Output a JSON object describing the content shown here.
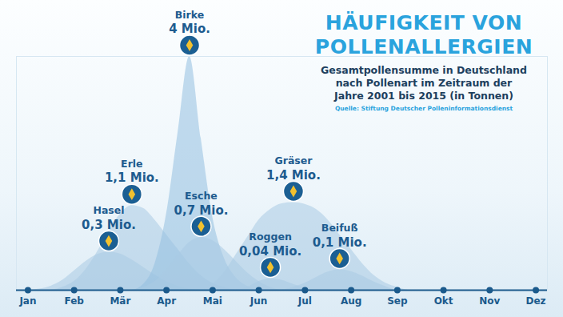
{
  "chart_data": {
    "type": "area",
    "title": "HÄUFIGKEIT VON POLLENALLERGIEN",
    "subtitle": "Gesamtpollensumme in Deutschland nach Pollenart im Zeitraum der Jahre 2001 bis 2015 (in Tonnen)",
    "source": "Quelle: Stiftung Deutscher Polleninformationsdienst",
    "x": [
      0,
      0.25,
      0.5,
      0.75,
      1,
      1.25,
      1.5,
      1.75,
      2,
      2.25,
      2.5,
      2.75,
      3,
      3.25,
      3.5,
      3.75,
      4,
      4.25,
      4.5,
      4.75,
      5,
      5.25,
      5.5,
      5.75,
      6,
      6.25,
      6.5,
      6.75,
      7,
      7.25,
      7.5,
      7.75,
      8,
      8.25,
      8.5,
      8.75,
      9
    ],
    "xlim": [
      -0.25,
      11.25
    ],
    "xticks": [
      {
        "value": 0,
        "label": "Jan"
      },
      {
        "value": 1,
        "label": "Feb"
      },
      {
        "value": 2,
        "label": "Mär"
      },
      {
        "value": 3,
        "label": "Apr"
      },
      {
        "value": 4,
        "label": "Mai"
      },
      {
        "value": 5,
        "label": "Jun"
      },
      {
        "value": 6,
        "label": "Jul"
      },
      {
        "value": 7,
        "label": "Aug"
      },
      {
        "value": 8,
        "label": "Sep"
      },
      {
        "value": 9,
        "label": "Okt"
      },
      {
        "value": 10,
        "label": "Nov"
      },
      {
        "value": 11,
        "label": "Dez"
      }
    ],
    "ylim": [
      0,
      4
    ],
    "tick_labels": "x",
    "data_labels": true,
    "series": [
      {
        "name": "Hasel",
        "color": "#a9cbe4",
        "total": 0.3,
        "total_label": "0,3 Mio.",
        "values": [
          0,
          0.02,
          0.07,
          0.17,
          0.33,
          0.49,
          0.61,
          0.65,
          0.62,
          0.52,
          0.39,
          0.26,
          0.15,
          0.07,
          0.02,
          0,
          0,
          0,
          0,
          0,
          0,
          0,
          0,
          0,
          0,
          0,
          0,
          0,
          0,
          0,
          0,
          0,
          0,
          0,
          0,
          0,
          0
        ]
      },
      {
        "name": "Erle",
        "color": "#a9cbe4",
        "total": 1.1,
        "total_label": "1,1 Mio.",
        "values": [
          0,
          0,
          0,
          0.05,
          0.15,
          0.35,
          0.65,
          1.0,
          1.3,
          1.45,
          1.4,
          1.2,
          0.95,
          0.7,
          0.45,
          0.25,
          0.12,
          0.05,
          0,
          0,
          0,
          0,
          0,
          0,
          0,
          0,
          0,
          0,
          0,
          0,
          0,
          0,
          0,
          0,
          0,
          0,
          0
        ]
      },
      {
        "name": "Birke",
        "color": "#93bfe0",
        "total": 4,
        "total_label": "4 Mio.",
        "values": [
          0,
          0,
          0,
          0,
          0,
          0,
          0,
          0,
          0,
          0,
          0.1,
          0.45,
          1.3,
          2.7,
          4.0,
          2.6,
          1.25,
          0.55,
          0.22,
          0.07,
          0,
          0,
          0,
          0,
          0,
          0,
          0,
          0,
          0,
          0,
          0,
          0,
          0,
          0,
          0,
          0,
          0
        ]
      },
      {
        "name": "Esche",
        "color": "#a9cbe4",
        "total": 0.7,
        "total_label": "0,7 Mio.",
        "values": [
          0,
          0,
          0,
          0,
          0,
          0,
          0,
          0,
          0,
          0,
          0.05,
          0.15,
          0.35,
          0.6,
          0.82,
          0.9,
          0.85,
          0.7,
          0.5,
          0.3,
          0.15,
          0.05,
          0,
          0,
          0,
          0,
          0,
          0,
          0,
          0,
          0,
          0,
          0,
          0,
          0,
          0,
          0
        ]
      },
      {
        "name": "Roggen",
        "color": "#a9cbe4",
        "total": 0.04,
        "total_label": "0,04 Mio.",
        "values": [
          0,
          0,
          0,
          0,
          0,
          0,
          0,
          0,
          0,
          0,
          0,
          0,
          0,
          0,
          0,
          0,
          0,
          0,
          0,
          0.05,
          0.15,
          0.2,
          0.17,
          0.1,
          0.04,
          0,
          0,
          0,
          0,
          0,
          0,
          0,
          0,
          0,
          0,
          0,
          0
        ]
      },
      {
        "name": "Gräser",
        "color": "#a9cbe4",
        "total": 1.4,
        "total_label": "1,4 Mio.",
        "values": [
          0,
          0,
          0,
          0,
          0,
          0,
          0,
          0,
          0,
          0,
          0,
          0,
          0,
          0,
          0,
          0,
          0.1,
          0.3,
          0.6,
          0.9,
          1.2,
          1.38,
          1.48,
          1.5,
          1.47,
          1.38,
          1.2,
          0.95,
          0.7,
          0.45,
          0.25,
          0.12,
          0.05,
          0,
          0,
          0,
          0
        ]
      },
      {
        "name": "Beifuß",
        "color": "#a9cbe4",
        "total": 0.1,
        "total_label": "0,1 Mio.",
        "values": [
          0,
          0,
          0,
          0,
          0,
          0,
          0,
          0,
          0,
          0,
          0,
          0,
          0,
          0,
          0,
          0,
          0,
          0,
          0,
          0,
          0,
          0,
          0,
          0.05,
          0.12,
          0.22,
          0.31,
          0.35,
          0.32,
          0.24,
          0.14,
          0.06,
          0,
          0,
          0,
          0,
          0
        ]
      }
    ]
  }
}
